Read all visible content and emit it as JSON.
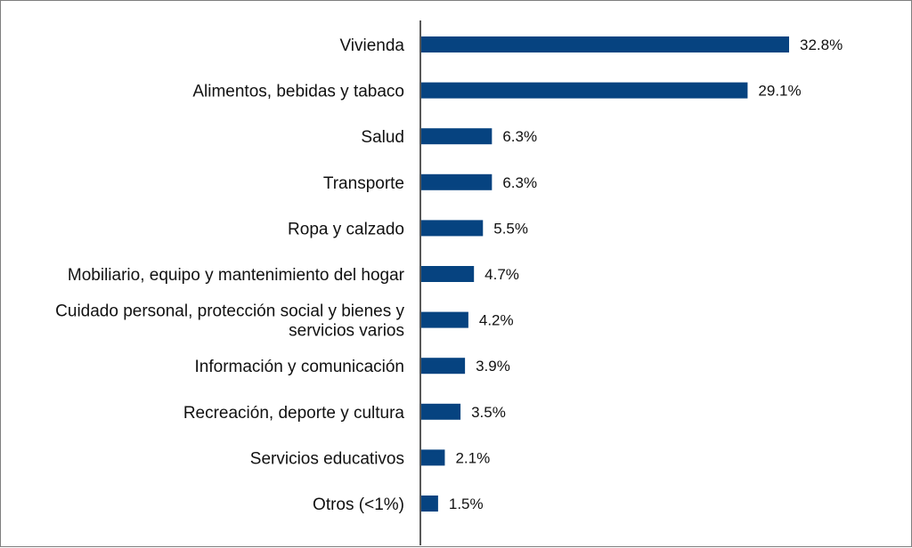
{
  "chart_data": {
    "type": "bar",
    "orientation": "horizontal",
    "categories": [
      "Vivienda",
      "Alimentos, bebidas y tabaco",
      "Salud",
      "Transporte",
      "Ropa y calzado",
      "Mobiliario, equipo y mantenimiento del hogar",
      "Cuidado personal, protección social y bienes y servicios varios",
      "Información y comunicación",
      "Recreación, deporte y cultura",
      "Servicios educativos",
      "Otros (<1%)"
    ],
    "category_lines": [
      [
        "Vivienda"
      ],
      [
        "Alimentos, bebidas y tabaco"
      ],
      [
        "Salud"
      ],
      [
        "Transporte"
      ],
      [
        "Ropa y calzado"
      ],
      [
        "Mobiliario, equipo y mantenimiento del hogar"
      ],
      [
        "Cuidado personal, protección social y bienes y",
        "servicios varios"
      ],
      [
        "Información y comunicación"
      ],
      [
        "Recreación, deporte y cultura"
      ],
      [
        "Servicios educativos"
      ],
      [
        "Otros (<1%)"
      ]
    ],
    "values": [
      32.8,
      29.1,
      6.3,
      6.3,
      5.5,
      4.7,
      4.2,
      3.9,
      3.5,
      2.1,
      1.5
    ],
    "value_labels": [
      "32.8%",
      "29.1%",
      "6.3%",
      "6.3%",
      "5.5%",
      "4.7%",
      "4.2%",
      "3.9%",
      "3.5%",
      "2.1%",
      "1.5%"
    ],
    "unit": "%",
    "xlim": [
      0,
      37
    ],
    "bar_color": "#064380",
    "title": "",
    "xlabel": "",
    "ylabel": "",
    "grid": false,
    "legend": "none"
  }
}
